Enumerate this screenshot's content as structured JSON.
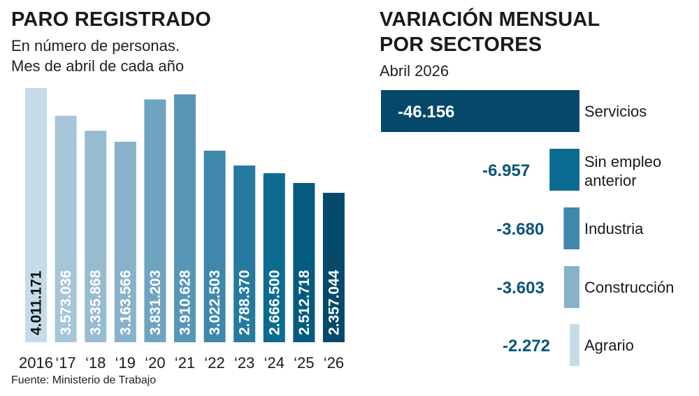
{
  "chart_data": [
    {
      "type": "bar",
      "orientation": "vertical",
      "title": "PARO REGISTRADO",
      "subtitle_lines": [
        "En número de personas.",
        "Mes de abril de cada año"
      ],
      "categories": [
        "2016",
        "‘17",
        "‘18",
        "‘19",
        "‘20",
        "‘21",
        "‘22",
        "‘23",
        "‘24",
        "‘25",
        "‘26"
      ],
      "values": [
        4011171,
        3573036,
        3335868,
        3163566,
        3831203,
        3910628,
        3022503,
        2788370,
        2666500,
        2512718,
        2357044
      ],
      "value_labels": [
        "4.011.171",
        "3.573.036",
        "3.335.868",
        "3.163.566",
        "3.831.203",
        "3.910.628",
        "3.022.503",
        "2.788.370",
        "2.666.500",
        "2.512.718",
        "2.357.044"
      ],
      "colors": [
        "#c6dbe8",
        "#a6c6d8",
        "#97bcd0",
        "#88b2c9",
        "#6ea4c0",
        "#5796b7",
        "#3f88ab",
        "#277a9f",
        "#0e6b90",
        "#055b7e",
        "#054a6b"
      ],
      "label_colors": [
        "#111111",
        "#ffffff",
        "#ffffff",
        "#ffffff",
        "#ffffff",
        "#ffffff",
        "#ffffff",
        "#ffffff",
        "#ffffff",
        "#ffffff",
        "#ffffff"
      ],
      "grid": false,
      "legend": "none"
    },
    {
      "type": "bar",
      "orientation": "horizontal",
      "title_lines": [
        "VARIACIÓN MENSUAL",
        "POR SECTORES"
      ],
      "subtitle": "Abril 2026",
      "categories": [
        [
          "Servicios"
        ],
        [
          "Sin empleo",
          "anterior"
        ],
        [
          "Industria"
        ],
        [
          "Construcción"
        ],
        [
          "Agrario"
        ]
      ],
      "values": [
        -46156,
        -6957,
        -3680,
        -3603,
        -2272
      ],
      "value_labels": [
        "-46.156",
        "-6.957",
        "-3.680",
        "-3.603",
        "-2.272"
      ],
      "colors": [
        "#05486a",
        "#0b6a90",
        "#3f88ab",
        "#88b2c9",
        "#c6dbe8"
      ],
      "label_colors": [
        "#ffffff",
        "#0b5479",
        "#0b5479",
        "#0b5479",
        "#0b5479"
      ],
      "grid": false,
      "legend": "none"
    }
  ],
  "source": "Fuente: Ministerio de Trabajo"
}
